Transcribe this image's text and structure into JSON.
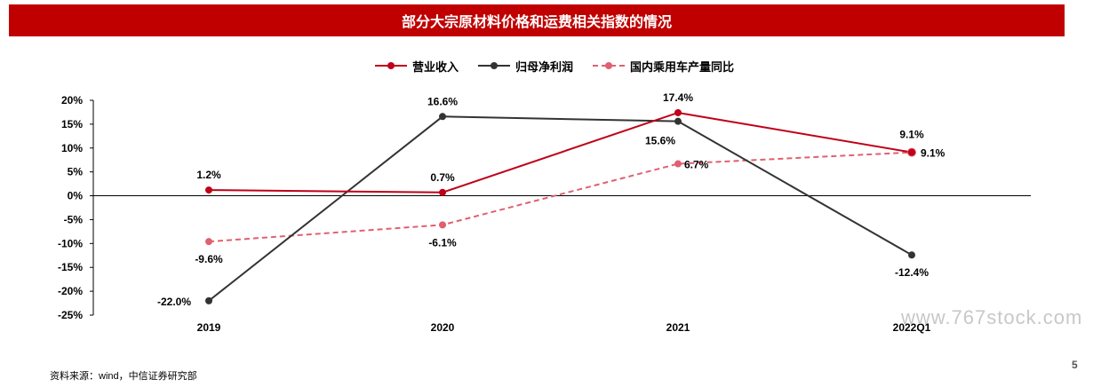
{
  "header": {
    "title": "部分大宗原材料价格和运费相关指数的情况"
  },
  "source": "资料来源：wind，中信证券研究部",
  "page_number": "5",
  "watermark": "www.767stock.com",
  "colors": {
    "revenue": "#c00018",
    "profit": "#333333",
    "vehicle": "#e06070",
    "header_bg": "#c00000"
  },
  "chart_data": {
    "type": "line",
    "categories": [
      "2019",
      "2020",
      "2021",
      "2022Q1"
    ],
    "ylim": [
      -25,
      20
    ],
    "yticks": [
      20,
      15,
      10,
      5,
      0,
      -5,
      -10,
      -15,
      -20,
      -25
    ],
    "ytick_labels": [
      "20%",
      "15%",
      "10%",
      "5%",
      "0%",
      "-5%",
      "-10%",
      "-15%",
      "-20%",
      "-25%"
    ],
    "legend_position": "top-center",
    "grid": false,
    "series": [
      {
        "name": "营业收入",
        "values": [
          1.2,
          0.7,
          17.4,
          9.1
        ],
        "labels": [
          "1.2%",
          "0.7%",
          "17.4%",
          "9.1%"
        ],
        "style": "solid"
      },
      {
        "name": "归母净利润",
        "values": [
          -22.0,
          16.6,
          15.6,
          -12.4
        ],
        "labels": [
          "-22.0%",
          "16.6%",
          "15.6%",
          "-12.4%"
        ],
        "style": "solid"
      },
      {
        "name": "国内乘用车产量同比",
        "values": [
          -9.6,
          -6.1,
          6.7,
          9.1
        ],
        "labels": [
          "-9.6%",
          "-6.1%",
          "6.7%",
          "9.1%"
        ],
        "style": "dashed"
      }
    ]
  }
}
